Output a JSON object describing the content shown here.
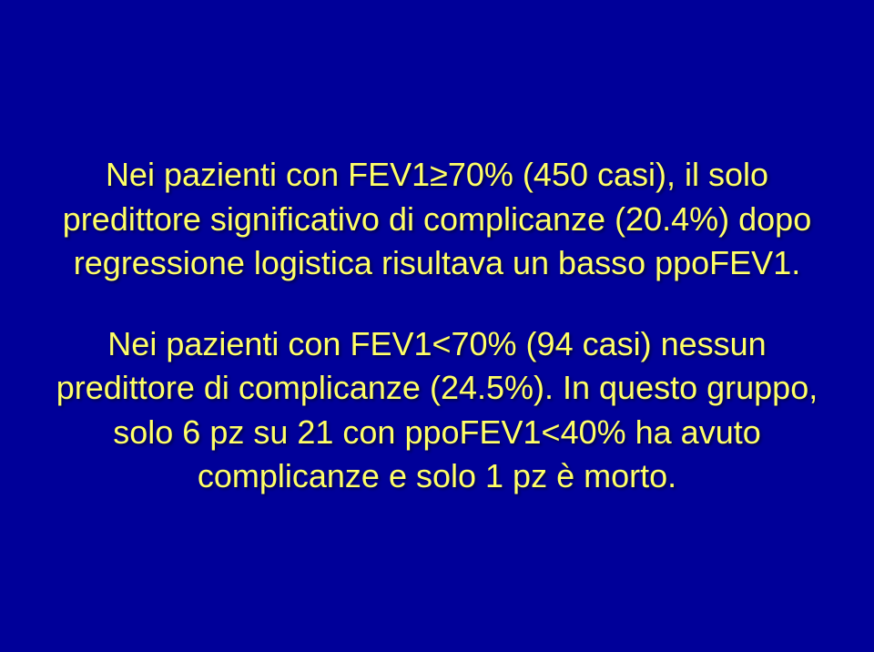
{
  "slide": {
    "background_color": "#000099",
    "text_color": "#ffff66",
    "font_family": "Verdana, Geneva, sans-serif",
    "font_size_pt": 28,
    "paragraphs": [
      "Nei pazienti con FEV1≥70% (450 casi), il solo predittore significativo di complicanze (20.4%) dopo regressione logistica risultava un basso ppoFEV1.",
      "Nei pazienti con FEV1<70% (94 casi) nessun predittore di complicanze (24.5%). In questo gruppo, solo 6 pz su 21 con ppoFEV1<40% ha avuto complicanze e solo 1 pz è morto."
    ]
  }
}
